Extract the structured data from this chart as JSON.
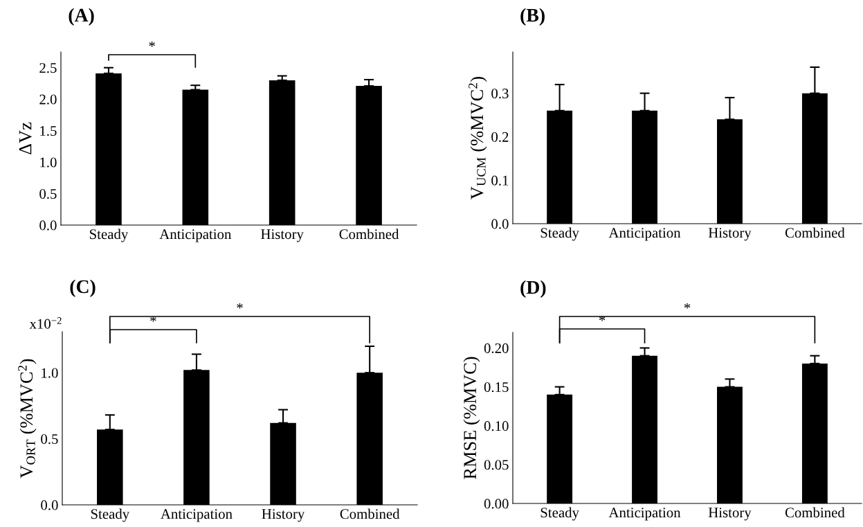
{
  "chart_data": [
    {
      "type": "bar",
      "title": "(A)",
      "ylabel": "ΔVz",
      "categories": [
        "Steady",
        "Anticipation",
        "History",
        "Combined"
      ],
      "values": [
        2.41,
        2.15,
        2.3,
        2.21
      ],
      "errors": [
        [
          2.41,
          2.5
        ],
        [
          2.15,
          2.22
        ],
        [
          2.3,
          2.37
        ],
        [
          2.21,
          2.31
        ]
      ],
      "color": "#000000",
      "ylim": [
        0,
        2.75
      ],
      "yticks": [
        {
          "value": 0,
          "label": "0.0"
        },
        0.5,
        {
          "value": 1,
          "label": "1.0"
        },
        1.5,
        {
          "value": 2,
          "label": "2.0"
        },
        2.5
      ],
      "grid": false,
      "annotations": [
        "*"
      ]
    },
    {
      "type": "bar",
      "title": "(B)",
      "ylabel": "V$_{UCM}$ (%MVC$^{2}$)",
      "categories": [
        "Steady",
        "Anticipation",
        "History",
        "Combined"
      ],
      "values": [
        0.26,
        0.26,
        0.24,
        0.3
      ],
      "errors": [
        [
          0.26,
          0.32
        ],
        [
          0.26,
          0.3
        ],
        [
          0.24,
          0.29
        ],
        [
          0.3,
          0.36
        ]
      ],
      "color": "#000000",
      "ylim": [
        0,
        0.395
      ],
      "yticks": [
        {
          "value": 0,
          "label": "0.0"
        },
        0.1,
        0.2,
        0.3
      ],
      "grid": false
    },
    {
      "type": "bar",
      "title": "(C)",
      "ylabel": "V$_{ORT}$ (%MVC$^{2}$)",
      "categories": [
        "Steady",
        "Anticipation",
        "History",
        "Combined"
      ],
      "values": [
        0.57,
        1.02,
        0.62,
        1.0
      ],
      "errors": [
        [
          0.57,
          0.68
        ],
        [
          1.02,
          1.14
        ],
        [
          0.62,
          0.72
        ],
        [
          1.0,
          1.2
        ]
      ],
      "color": "#000000",
      "ylim": [
        0,
        1.31
      ],
      "yticks": [
        {
          "value": 0,
          "label": "0.0"
        },
        0.5,
        {
          "value": 1,
          "label": "1.0"
        }
      ],
      "grid": false,
      "annotations": [
        "*",
        "*",
        "x10$^{−2}$"
      ]
    },
    {
      "type": "bar",
      "title": "(D)",
      "ylabel": "RMSE (%MVC)",
      "categories": [
        "Steady",
        "Anticipation",
        "History",
        "Combined"
      ],
      "values": [
        0.14,
        0.19,
        0.15,
        0.18
      ],
      "errors": [
        [
          0.14,
          0.15
        ],
        [
          0.19,
          0.2
        ],
        [
          0.15,
          0.16
        ],
        [
          0.18,
          0.19
        ]
      ],
      "color": "#000000",
      "ylim": [
        0,
        0.22
      ],
      "yticks": [
        {
          "value": 0,
          "label": "0.00"
        },
        0.05,
        {
          "value": 0.1,
          "label": "0.10"
        },
        0.15,
        {
          "value": 0.2,
          "label": "0.20"
        }
      ],
      "grid": false,
      "annotations": [
        "*",
        "*"
      ]
    }
  ]
}
